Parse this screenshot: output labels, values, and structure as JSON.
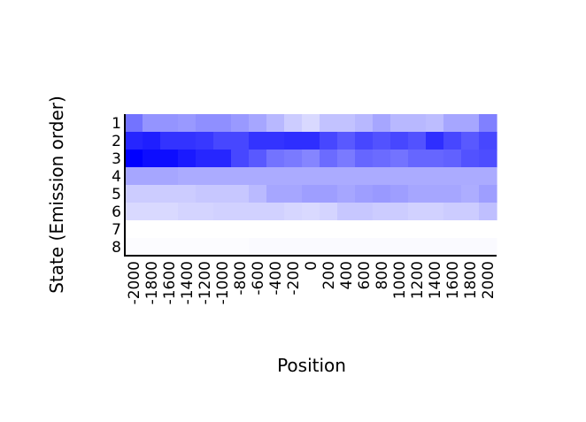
{
  "chart_data": {
    "type": "heatmap",
    "xlabel": "Position",
    "ylabel": "State (Emission order)",
    "x": [
      "-2000",
      "-1800",
      "-1600",
      "-1400",
      "-1200",
      "-1000",
      "-800",
      "-600",
      "-400",
      "-200",
      "0",
      "200",
      "400",
      "600",
      "800",
      "1000",
      "1200",
      "1400",
      "1600",
      "1800",
      "2000"
    ],
    "y": [
      "1",
      "2",
      "3",
      "4",
      "5",
      "6",
      "7",
      "8"
    ],
    "color_scale": {
      "low": "#ffffff",
      "high": "#0000ff"
    },
    "values": [
      [
        0.55,
        0.42,
        0.42,
        0.4,
        0.44,
        0.44,
        0.4,
        0.35,
        0.28,
        0.2,
        0.15,
        0.24,
        0.24,
        0.28,
        0.35,
        0.28,
        0.28,
        0.26,
        0.35,
        0.35,
        0.5
      ],
      [
        0.85,
        0.88,
        0.8,
        0.8,
        0.78,
        0.72,
        0.72,
        0.8,
        0.8,
        0.82,
        0.82,
        0.72,
        0.65,
        0.72,
        0.68,
        0.72,
        0.68,
        0.82,
        0.72,
        0.65,
        0.72
      ],
      [
        1.0,
        0.95,
        0.95,
        0.9,
        0.85,
        0.85,
        0.72,
        0.65,
        0.55,
        0.52,
        0.48,
        0.58,
        0.52,
        0.6,
        0.58,
        0.55,
        0.6,
        0.6,
        0.62,
        0.68,
        0.7
      ],
      [
        0.35,
        0.35,
        0.35,
        0.33,
        0.33,
        0.33,
        0.33,
        0.33,
        0.33,
        0.33,
        0.33,
        0.33,
        0.33,
        0.33,
        0.33,
        0.33,
        0.33,
        0.33,
        0.33,
        0.33,
        0.33
      ],
      [
        0.2,
        0.2,
        0.2,
        0.2,
        0.22,
        0.22,
        0.22,
        0.27,
        0.35,
        0.35,
        0.38,
        0.38,
        0.35,
        0.38,
        0.4,
        0.38,
        0.35,
        0.35,
        0.35,
        0.32,
        0.38
      ],
      [
        0.15,
        0.15,
        0.15,
        0.17,
        0.17,
        0.18,
        0.18,
        0.18,
        0.18,
        0.16,
        0.15,
        0.17,
        0.22,
        0.22,
        0.2,
        0.2,
        0.18,
        0.18,
        0.2,
        0.2,
        0.25
      ],
      [
        0.0,
        0.0,
        0.0,
        0.0,
        0.0,
        0.0,
        0.0,
        0.0,
        0.0,
        0.0,
        0.0,
        0.0,
        0.0,
        0.0,
        0.0,
        0.0,
        0.0,
        0.0,
        0.0,
        0.0,
        0.0
      ],
      [
        0.01,
        0.01,
        0.01,
        0.01,
        0.01,
        0.01,
        0.01,
        0.02,
        0.02,
        0.02,
        0.02,
        0.02,
        0.02,
        0.02,
        0.02,
        0.02,
        0.02,
        0.02,
        0.02,
        0.02,
        0.02
      ]
    ]
  }
}
